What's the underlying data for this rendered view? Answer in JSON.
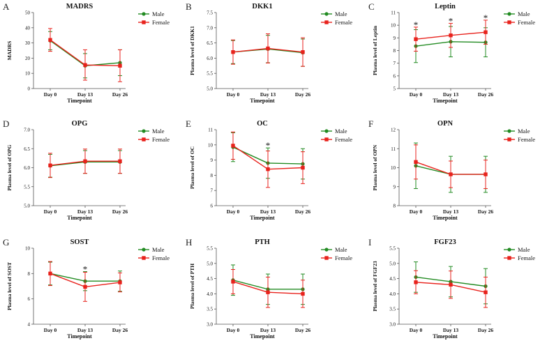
{
  "figure": {
    "colors": {
      "male": "#228B22",
      "female": "#E8221C",
      "axis": "#555555"
    }
  },
  "chart_data": [
    {
      "letter": "A",
      "type": "line",
      "title": "MADRS",
      "ylabel": "MADRS",
      "xlabel": "Timepoint",
      "categories": [
        "Day 0",
        "Day 13",
        "Day 26"
      ],
      "ylim": [
        0,
        50
      ],
      "yticks": [
        "0",
        "10",
        "20",
        "30",
        "40",
        "50"
      ],
      "ytick_values": [
        0,
        10,
        20,
        30,
        40,
        50
      ],
      "legend": [
        "Male",
        "Female"
      ],
      "series": [
        {
          "name": "Male",
          "values": [
            31.5,
            15.0,
            17.0
          ],
          "error": [
            6.0,
            8.0,
            8.5
          ]
        },
        {
          "name": "Female",
          "values": [
            32.0,
            15.5,
            15.0
          ],
          "error": [
            7.5,
            10.0,
            10.5
          ]
        }
      ],
      "significance": []
    },
    {
      "letter": "B",
      "type": "line",
      "title": "DKK1",
      "ylabel": "Plasma level of DKK1",
      "xlabel": "Timepoint",
      "categories": [
        "Day 0",
        "Day 13",
        "Day 26"
      ],
      "ylim": [
        5.0,
        7.5
      ],
      "yticks": [
        "5.0",
        "5.5",
        "6.0",
        "6.5",
        "7.0",
        "7.5"
      ],
      "ytick_values": [
        5.0,
        5.5,
        6.0,
        6.5,
        7.0,
        7.5
      ],
      "legend": [
        "Male",
        "Female"
      ],
      "series": [
        {
          "name": "Male",
          "values": [
            6.2,
            6.3,
            6.18
          ],
          "error": [
            0.38,
            0.45,
            0.45
          ]
        },
        {
          "name": "Female",
          "values": [
            6.2,
            6.32,
            6.2
          ],
          "error": [
            0.4,
            0.48,
            0.47
          ]
        }
      ],
      "significance": []
    },
    {
      "letter": "C",
      "type": "line",
      "title": "Leptin",
      "ylabel": "Plasma level of Leptin",
      "xlabel": "Timepoint",
      "categories": [
        "Day 0",
        "Day 13",
        "Day 26"
      ],
      "ylim": [
        5,
        11
      ],
      "yticks": [
        "5",
        "6",
        "7",
        "8",
        "9",
        "10",
        "11"
      ],
      "ytick_values": [
        5,
        6,
        7,
        8,
        9,
        10,
        11
      ],
      "legend": [
        "Male",
        "Female"
      ],
      "series": [
        {
          "name": "Male",
          "values": [
            8.35,
            8.7,
            8.65
          ],
          "error": [
            1.3,
            1.2,
            1.15
          ]
        },
        {
          "name": "Female",
          "values": [
            8.9,
            9.2,
            9.45
          ],
          "error": [
            0.95,
            0.95,
            0.95
          ]
        }
      ],
      "significance": [
        "*",
        "*",
        "*"
      ]
    },
    {
      "letter": "D",
      "type": "line",
      "title": "OPG",
      "ylabel": "Plasma level of OPG",
      "xlabel": "Timepoint",
      "categories": [
        "Day 0",
        "Day 13",
        "Day 26"
      ],
      "ylim": [
        5.0,
        7.0
      ],
      "yticks": [
        "5.0",
        "5.5",
        "6.0",
        "6.5",
        "7.0"
      ],
      "ytick_values": [
        5.0,
        5.5,
        6.0,
        6.5,
        7.0
      ],
      "legend": [
        "Male",
        "Female"
      ],
      "series": [
        {
          "name": "Male",
          "values": [
            6.05,
            6.15,
            6.15
          ],
          "error": [
            0.3,
            0.3,
            0.3
          ]
        },
        {
          "name": "Female",
          "values": [
            6.06,
            6.17,
            6.17
          ],
          "error": [
            0.32,
            0.32,
            0.32
          ]
        }
      ],
      "significance": []
    },
    {
      "letter": "E",
      "type": "line",
      "title": "OC",
      "ylabel": "Plasma level of OC",
      "xlabel": "Timepoint",
      "categories": [
        "Day 0",
        "Day 13",
        "Day 26"
      ],
      "ylim": [
        6,
        11
      ],
      "yticks": [
        "6",
        "7",
        "8",
        "9",
        "10",
        "11"
      ],
      "ytick_values": [
        6,
        7,
        8,
        9,
        10,
        11
      ],
      "legend": [
        "Male",
        "Female"
      ],
      "series": [
        {
          "name": "Male",
          "values": [
            9.85,
            8.8,
            8.75
          ],
          "error": [
            0.95,
            1.0,
            1.0
          ]
        },
        {
          "name": "Female",
          "values": [
            9.95,
            8.4,
            8.5
          ],
          "error": [
            0.9,
            1.2,
            1.05
          ]
        }
      ],
      "significance": [
        "",
        "*",
        ""
      ]
    },
    {
      "letter": "F",
      "type": "line",
      "title": "OPN",
      "ylabel": "Plasma level of OPN",
      "xlabel": "Timepoint",
      "categories": [
        "Day 0",
        "Day 13",
        "Day 26"
      ],
      "ylim": [
        8,
        12
      ],
      "yticks": [
        "8",
        "9",
        "10",
        "11",
        "12"
      ],
      "ytick_values": [
        8,
        9,
        10,
        11,
        12
      ],
      "legend": [
        "Male",
        "Female"
      ],
      "series": [
        {
          "name": "Male",
          "values": [
            10.1,
            9.65,
            9.65
          ],
          "error": [
            1.2,
            0.95,
            0.95
          ]
        },
        {
          "name": "Female",
          "values": [
            10.3,
            9.65,
            9.65
          ],
          "error": [
            0.9,
            0.7,
            0.75
          ]
        }
      ],
      "significance": []
    },
    {
      "letter": "G",
      "type": "line",
      "title": "SOST",
      "ylabel": "Plasma level of SOST",
      "xlabel": "Timepoint",
      "categories": [
        "Day 0",
        "Day 13",
        "Day 26"
      ],
      "ylim": [
        4,
        10
      ],
      "yticks": [
        "4",
        "6",
        "8",
        "10"
      ],
      "ytick_values": [
        4,
        6,
        8,
        10
      ],
      "legend": [
        "Male",
        "Female"
      ],
      "series": [
        {
          "name": "Male",
          "values": [
            8.0,
            7.4,
            7.4
          ],
          "error": [
            0.9,
            0.75,
            0.8
          ]
        },
        {
          "name": "Female",
          "values": [
            8.0,
            6.95,
            7.3
          ],
          "error": [
            0.95,
            1.15,
            0.75
          ]
        }
      ],
      "significance": [
        "",
        "*",
        ""
      ]
    },
    {
      "letter": "H",
      "type": "line",
      "title": "PTH",
      "ylabel": "Plasma level of PTH",
      "xlabel": "Timepoint",
      "categories": [
        "Day 0",
        "Day 13",
        "Day 26"
      ],
      "ylim": [
        3.0,
        5.5
      ],
      "yticks": [
        "3.0",
        "3.5",
        "4.0",
        "4.5",
        "5.0",
        "5.5"
      ],
      "ytick_values": [
        3.0,
        3.5,
        4.0,
        4.5,
        5.0,
        5.5
      ],
      "legend": [
        "Male",
        "Female"
      ],
      "series": [
        {
          "name": "Male",
          "values": [
            4.45,
            4.15,
            4.15
          ],
          "error": [
            0.5,
            0.5,
            0.5
          ]
        },
        {
          "name": "Female",
          "values": [
            4.4,
            4.05,
            4.0
          ],
          "error": [
            0.4,
            0.5,
            0.45
          ]
        }
      ],
      "significance": []
    },
    {
      "letter": "I",
      "type": "line",
      "title": "FGF23",
      "ylabel": "Plasma level of FGF23",
      "xlabel": "Timepoint",
      "categories": [
        "Day 0",
        "Day 13",
        "Day 26"
      ],
      "ylim": [
        3.0,
        5.5
      ],
      "yticks": [
        "3.0",
        "3.5",
        "4.0",
        "4.5",
        "5.0",
        "5.5"
      ],
      "ytick_values": [
        3.0,
        3.5,
        4.0,
        4.5,
        5.0,
        5.5
      ],
      "legend": [
        "Male",
        "Female"
      ],
      "series": [
        {
          "name": "Male",
          "values": [
            4.55,
            4.4,
            4.25
          ],
          "error": [
            0.5,
            0.5,
            0.58
          ]
        },
        {
          "name": "Female",
          "values": [
            4.38,
            4.3,
            4.05
          ],
          "error": [
            0.38,
            0.45,
            0.5
          ]
        }
      ],
      "significance": []
    }
  ]
}
